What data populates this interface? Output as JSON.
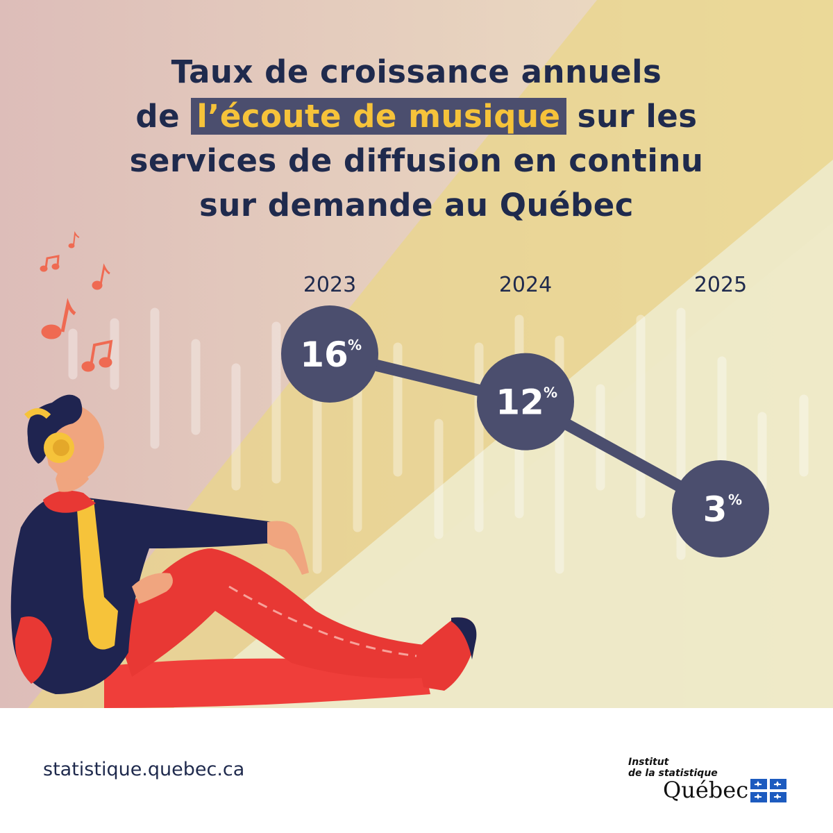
{
  "title": {
    "line1": "Taux de croissance annuels",
    "line2_before": "de ",
    "line2_highlight": "l’écoute de musique",
    "line2_after": " sur les",
    "line3": "services de diffusion en continu",
    "line4": "sur demande au Québec"
  },
  "chart_data": {
    "type": "line",
    "title": "Taux de croissance annuels de l’écoute de musique sur les services de diffusion en continu sur demande au Québec",
    "categories": [
      "2023",
      "2024",
      "2025"
    ],
    "values": [
      16,
      12,
      3
    ],
    "value_labels": [
      "16",
      "12",
      "3"
    ],
    "unit": "%",
    "colors": {
      "marker": "#4b4e6e",
      "line": "#4b4e6e",
      "label": "#ffffff",
      "year": "#1f2a4d"
    }
  },
  "footer": {
    "url": "statistique.quebec.ca",
    "logo_line1": "Institut",
    "logo_line2": "de la statistique",
    "logo_line3": "Québec"
  },
  "colors": {
    "title": "#1f2a4d",
    "highlight_bg": "#4b4e6e",
    "highlight_text": "#f6c33a",
    "bg_left": "#ddbdb9",
    "bg_right": "#efe2c3",
    "beam": "#ead589",
    "floor": "#eeeac8",
    "flag_blue": "#1d5bbf"
  },
  "illustration": [
    "music-notes-icon",
    "listener-with-headphones-illustration"
  ]
}
